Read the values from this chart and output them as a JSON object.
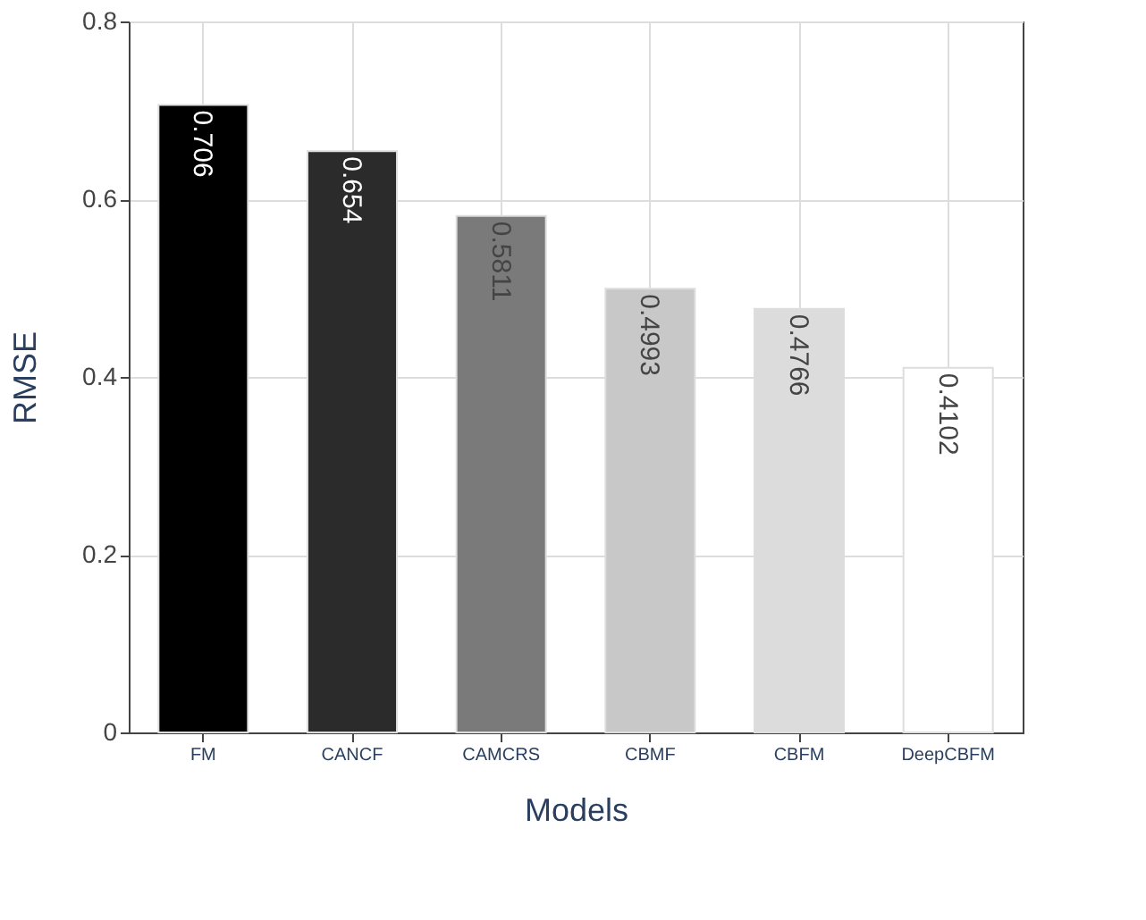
{
  "chart_data": {
    "type": "bar",
    "xlabel": "Models",
    "ylabel": "RMSE",
    "categories": [
      "FM",
      "CANCF",
      "CAMCRS",
      "CBMF",
      "CBFM",
      "DeepCBFM"
    ],
    "values": [
      0.706,
      0.654,
      0.5811,
      0.4993,
      0.4766,
      0.4102
    ],
    "colors": [
      "#000000",
      "#2b2b2b",
      "#7a7a7a",
      "#c8c8c8",
      "#dcdcdc",
      "#ffffff"
    ],
    "ylim": [
      0,
      0.8
    ],
    "yticks": [
      0,
      0.2,
      0.4,
      0.6,
      0.8
    ],
    "grid": true,
    "data_labels": true
  }
}
